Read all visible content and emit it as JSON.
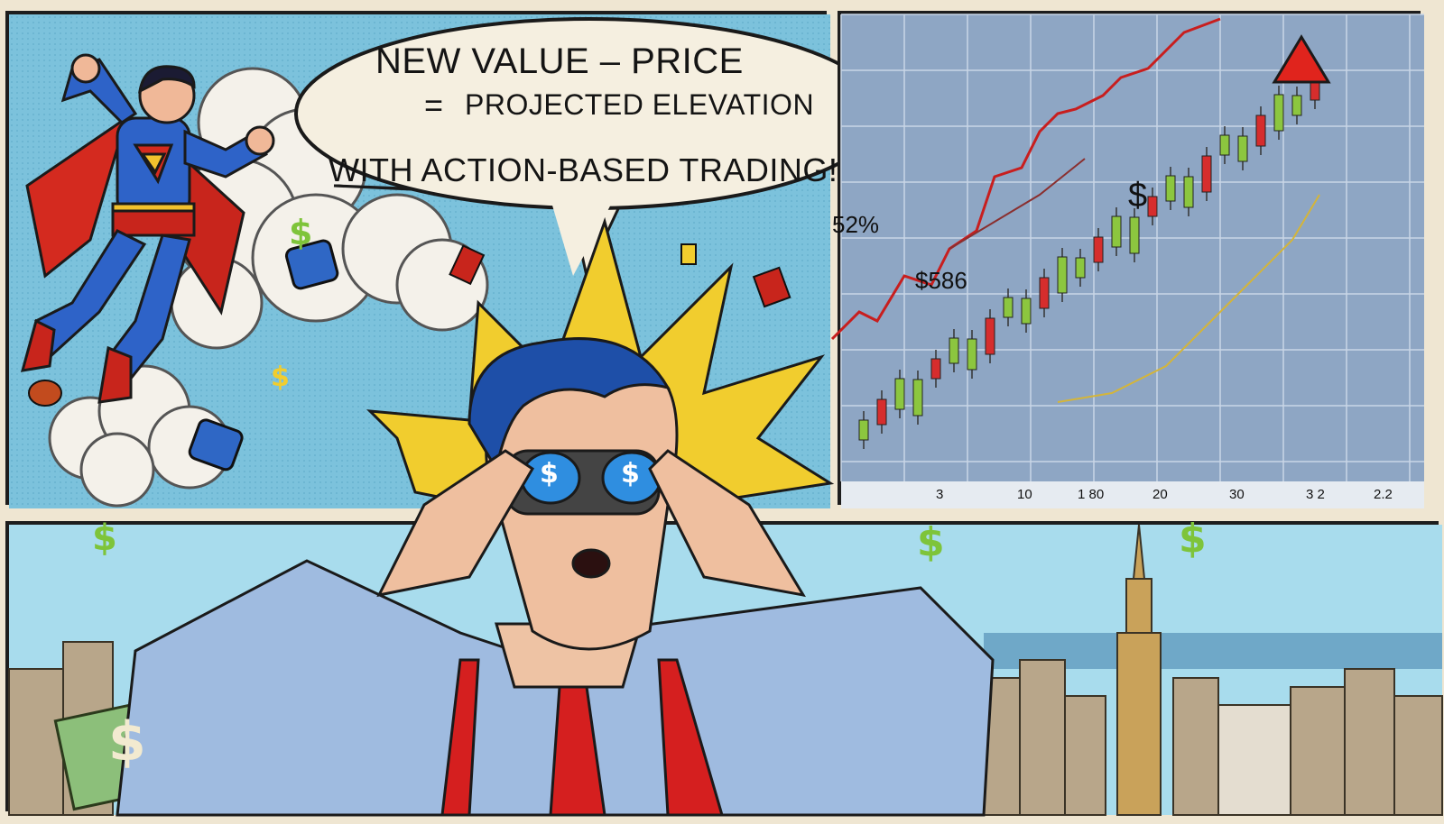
{
  "speech_bubble": {
    "line1": "NEW VALUE – PRICE",
    "line2_symbol": "=",
    "line2": "PROJECTED ELEVATION",
    "line3": "WITH ACTION-BASED TRADING!"
  },
  "chart": {
    "annotation_percent": "52%",
    "annotation_value": "$586",
    "annotation_dollar": "$",
    "x_tick_labels": [
      "3",
      "10",
      "1 80",
      "20",
      "30",
      "3 2",
      "2.2"
    ]
  },
  "dollar_sign": "$",
  "colors": {
    "sky": "#7cc2dc",
    "burst": "#f1cd2e",
    "shirt": "#9fbbe0",
    "tie": "#d51f1f",
    "chart_bg": "#8ea6c4",
    "candle_up": "#8cc63f",
    "candle_down": "#d62d2d",
    "trend_red": "#c81e1e",
    "dollar_green": "#7ec43a"
  },
  "icons": [
    "superhero",
    "cloud",
    "money-bill",
    "dollar-goggles",
    "city-skyline",
    "red-arrow-up"
  ]
}
